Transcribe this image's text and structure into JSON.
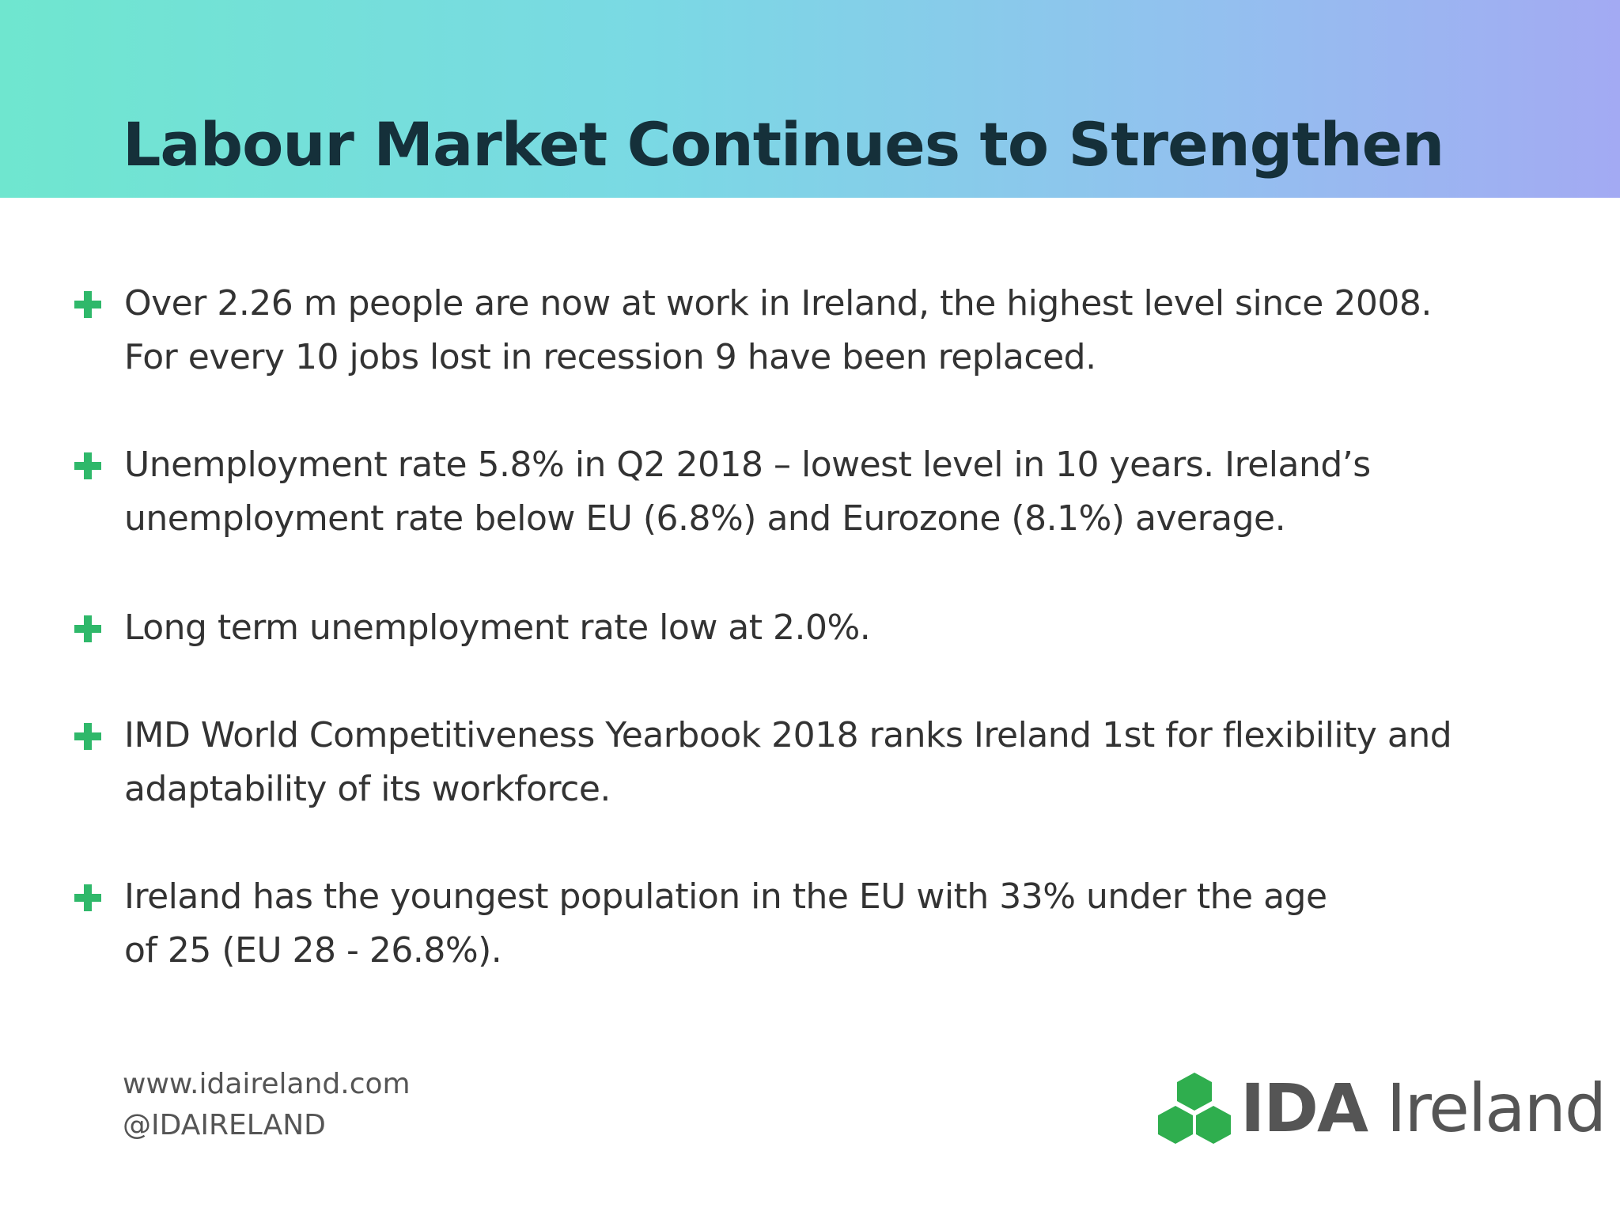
{
  "header": {
    "title": "Labour Market Continues to Strengthen"
  },
  "bullets": [
    {
      "lines": [
        "Over 2.26 m people are now at work in Ireland, the highest level since 2008.",
        "For every 10 jobs lost in recession 9 have been replaced."
      ]
    },
    {
      "lines": [
        "Unemployment rate 5.8% in Q2 2018 – lowest level in 10 years. Ireland’s",
        "unemployment rate below EU (6.8%) and Eurozone (8.1%) average."
      ]
    },
    {
      "lines": [
        "Long term unemployment rate low at 2.0%."
      ]
    },
    {
      "lines": [
        "IMD World Competitiveness Yearbook 2018 ranks Ireland 1st for flexibility and",
        "adaptability of its workforce."
      ]
    },
    {
      "lines": [
        "Ireland has the youngest population in the EU with 33% under the age",
        "of 25 (EU 28 - 26.8%)."
      ]
    }
  ],
  "footer": {
    "website": "www.idaireland.com",
    "handle": "@IDAIRELAND",
    "logo": {
      "bold": "IDA",
      "light": "Ireland"
    }
  }
}
